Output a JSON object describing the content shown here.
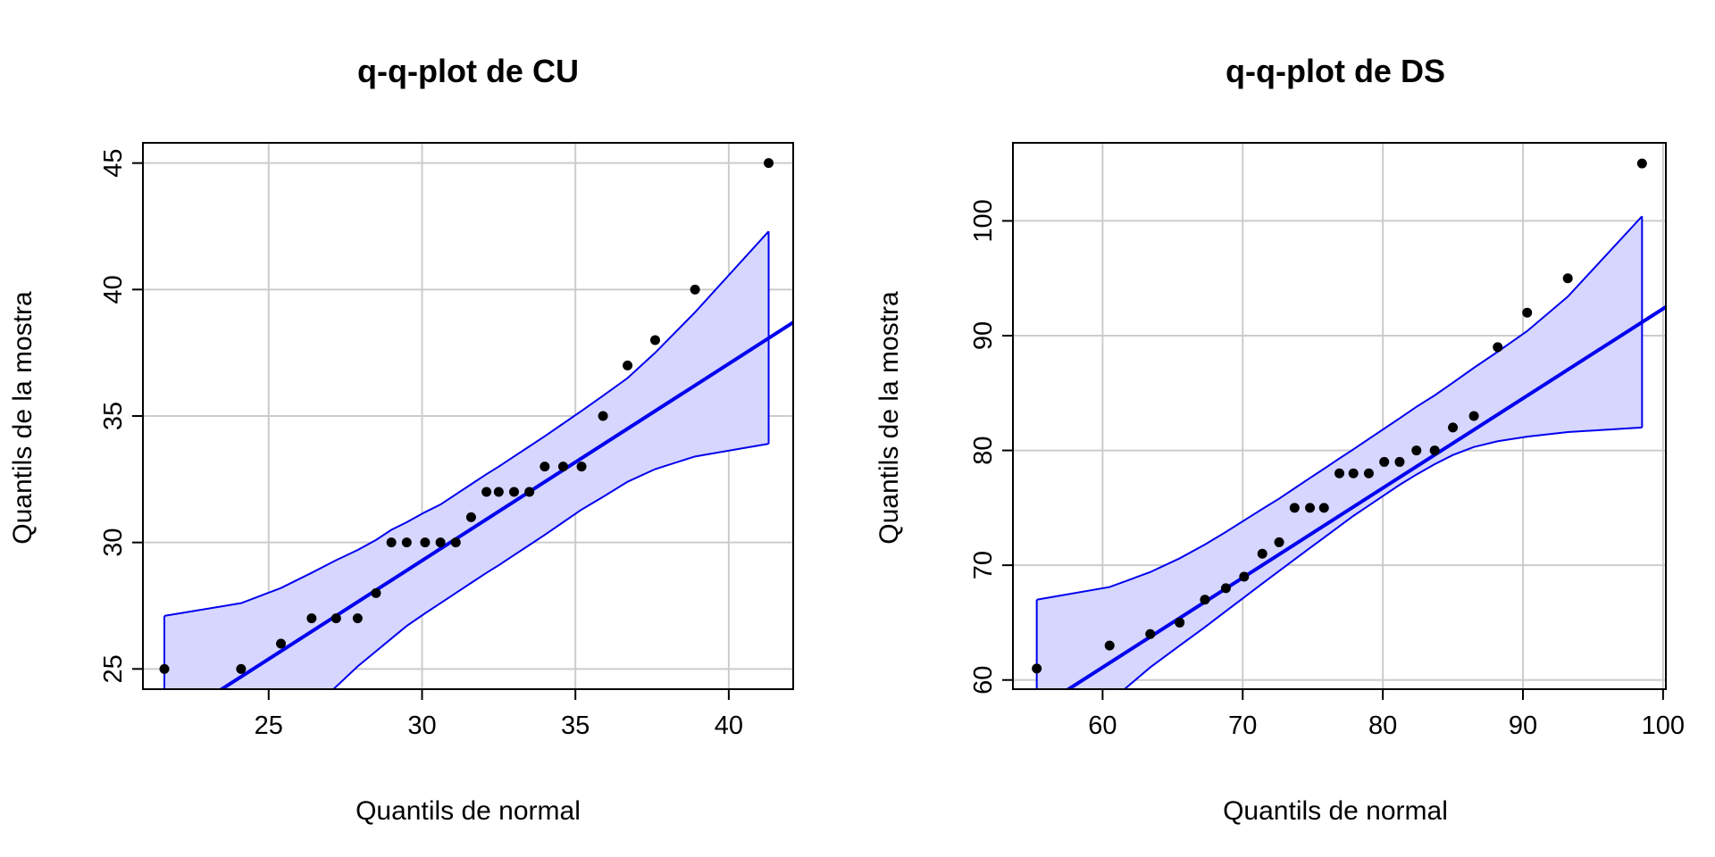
{
  "chart_data": [
    {
      "type": "scatter",
      "title": "q-q-plot de CU",
      "xlabel": "Quantils de normal",
      "ylabel": "Quantils de la mostra",
      "xlim": [
        20.9,
        42.1
      ],
      "ylim": [
        24.2,
        45.8
      ],
      "xticks": [
        25,
        30,
        35,
        40
      ],
      "yticks": [
        25,
        30,
        35,
        40,
        45
      ],
      "grid": true,
      "points": {
        "x": [
          21.6,
          24.1,
          25.4,
          26.4,
          27.2,
          27.9,
          28.5,
          29.0,
          29.5,
          30.1,
          30.6,
          31.1,
          31.6,
          32.1,
          32.5,
          33.0,
          33.5,
          34.0,
          34.6,
          35.2,
          35.9,
          36.7,
          37.6,
          38.9,
          41.3
        ],
        "y": [
          25,
          25,
          26,
          27,
          27,
          27,
          28,
          30,
          30,
          30,
          30,
          30,
          31,
          32,
          32,
          32,
          32,
          33,
          33,
          33,
          35,
          37,
          38,
          40,
          45
        ]
      },
      "reference_line": {
        "x": [
          20.9,
          42.1
        ],
        "y": [
          22.2,
          38.7
        ]
      },
      "band": {
        "x": [
          21.6,
          24.1,
          25.4,
          26.4,
          27.2,
          27.9,
          28.5,
          29.0,
          29.5,
          30.1,
          30.6,
          31.1,
          31.6,
          32.1,
          32.5,
          33.0,
          33.5,
          34.0,
          34.6,
          35.2,
          35.9,
          36.7,
          37.6,
          38.9,
          41.3
        ],
        "upper": [
          27.1,
          27.6,
          28.2,
          28.8,
          29.3,
          29.7,
          30.1,
          30.5,
          30.8,
          31.2,
          31.5,
          31.9,
          32.3,
          32.7,
          33.0,
          33.4,
          33.8,
          34.2,
          34.7,
          35.2,
          35.8,
          36.5,
          37.5,
          39.1,
          42.3
        ],
        "lower": [
          18.5,
          20.9,
          22.1,
          23.4,
          24.3,
          25.1,
          25.7,
          26.2,
          26.7,
          27.2,
          27.6,
          28.0,
          28.4,
          28.8,
          29.1,
          29.5,
          29.9,
          30.3,
          30.8,
          31.3,
          31.8,
          32.4,
          32.9,
          33.4,
          33.9
        ]
      },
      "colors": {
        "band_fill": "#d6d6ff",
        "line": "#0000ee",
        "points": "#000000"
      }
    },
    {
      "type": "scatter",
      "title": "q-q-plot de DS",
      "xlabel": "Quantils de normal",
      "ylabel": "Quantils de la mostra",
      "xlim": [
        53.6,
        100.2
      ],
      "ylim": [
        59.2,
        106.8
      ],
      "xticks": [
        60,
        70,
        80,
        90,
        100
      ],
      "yticks": [
        60,
        70,
        80,
        90,
        100
      ],
      "grid": true,
      "points": {
        "x": [
          55.3,
          60.5,
          63.4,
          65.5,
          67.3,
          68.8,
          70.1,
          71.4,
          72.6,
          73.7,
          74.8,
          75.8,
          76.9,
          77.9,
          79.0,
          80.1,
          81.2,
          82.4,
          83.7,
          85.0,
          86.5,
          88.2,
          90.3,
          93.2,
          98.5
        ],
        "y": [
          61,
          63,
          64,
          65,
          67,
          68,
          69,
          71,
          72,
          75,
          75,
          75,
          78,
          78,
          78,
          79,
          79,
          80,
          80,
          82,
          83,
          89,
          92,
          95,
          105
        ]
      },
      "reference_line": {
        "x": [
          53.6,
          100.2
        ],
        "y": [
          56.1,
          92.5
        ]
      },
      "band": {
        "x": [
          55.3,
          60.5,
          63.4,
          65.5,
          67.3,
          68.8,
          70.1,
          71.4,
          72.6,
          73.7,
          74.8,
          75.8,
          76.9,
          77.9,
          79.0,
          80.1,
          81.2,
          82.4,
          83.7,
          85.0,
          86.5,
          88.2,
          90.3,
          93.2,
          98.5
        ],
        "upper": [
          67.0,
          68.1,
          69.4,
          70.6,
          71.8,
          72.9,
          73.9,
          74.9,
          75.8,
          76.7,
          77.6,
          78.4,
          79.3,
          80.1,
          81.0,
          81.9,
          82.8,
          83.8,
          84.8,
          85.9,
          87.2,
          88.6,
          90.4,
          93.4,
          100.4
        ],
        "lower": [
          53.8,
          58.1,
          61.1,
          63.0,
          64.6,
          66.0,
          67.2,
          68.4,
          69.5,
          70.5,
          71.5,
          72.4,
          73.4,
          74.3,
          75.2,
          76.1,
          77.0,
          77.9,
          78.8,
          79.6,
          80.3,
          80.8,
          81.2,
          81.6,
          82.0
        ]
      },
      "colors": {
        "band_fill": "#d6d6ff",
        "line": "#0000ee",
        "points": "#000000"
      }
    }
  ]
}
